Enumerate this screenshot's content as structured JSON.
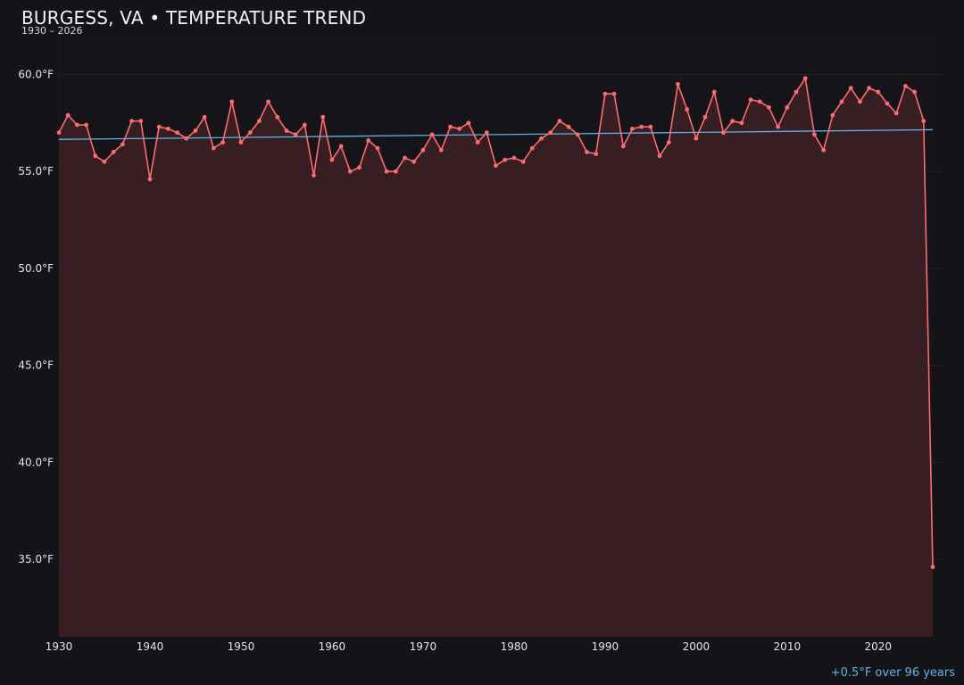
{
  "header": {
    "title": "BURGESS, VA • TEMPERATURE TREND",
    "subtitle": "1930 – 2026"
  },
  "footer": {
    "trend_note": "+0.5°F over 96 years"
  },
  "colors": {
    "background": "#131318",
    "plot_background": "#151519",
    "line": "#ff6b6b",
    "area_fill": "#3a1f25",
    "trend": "#5db3e8",
    "grid": "#2a2026",
    "tick_text": "#e6e6ea"
  },
  "chart_data": {
    "type": "line",
    "title": "BURGESS, VA • TEMPERATURE TREND",
    "subtitle": "1930 – 2026",
    "xlabel": "",
    "ylabel": "",
    "xlim": [
      1930,
      2026
    ],
    "ylim": [
      31,
      62
    ],
    "x_ticks": [
      1930,
      1940,
      1950,
      1960,
      1970,
      1980,
      1990,
      2000,
      2010,
      2020
    ],
    "y_ticks": [
      35.0,
      40.0,
      45.0,
      50.0,
      55.0,
      60.0
    ],
    "y_tick_labels": [
      "35.0°F",
      "40.0°F",
      "45.0°F",
      "50.0°F",
      "55.0°F",
      "60.0°F"
    ],
    "grid": true,
    "area_fill": true,
    "series": [
      {
        "x": [
          1930,
          1931,
          1932,
          1933,
          1934,
          1935,
          1936,
          1937,
          1938,
          1939,
          1940,
          1941,
          1942,
          1943,
          1944,
          1945,
          1946,
          1947,
          1948,
          1949,
          1950,
          1951,
          1952,
          1953,
          1954,
          1955,
          1956,
          1957,
          1958,
          1959,
          1960,
          1961,
          1962,
          1963,
          1964,
          1965,
          1966,
          1967,
          1968,
          1969,
          1970,
          1971,
          1972,
          1973,
          1974,
          1975,
          1976,
          1977,
          1978,
          1979,
          1980,
          1981,
          1982,
          1983,
          1984,
          1985,
          1986,
          1987,
          1988,
          1989,
          1990,
          1991,
          1992,
          1993,
          1994,
          1995,
          1996,
          1997,
          1998,
          1999,
          2000,
          2001,
          2002,
          2003,
          2004,
          2005,
          2006,
          2007,
          2008,
          2009,
          2010,
          2011,
          2012,
          2013,
          2014,
          2015,
          2016,
          2017,
          2018,
          2019,
          2020,
          2021,
          2022,
          2023,
          2024,
          2025,
          2026
        ],
        "values": [
          57.0,
          57.9,
          57.4,
          57.4,
          55.8,
          55.5,
          56.0,
          56.4,
          57.6,
          57.6,
          54.6,
          57.3,
          57.2,
          57.0,
          56.7,
          57.1,
          57.8,
          56.2,
          56.5,
          58.6,
          56.5,
          57.0,
          57.6,
          58.6,
          57.8,
          57.1,
          56.9,
          57.4,
          54.8,
          57.8,
          55.6,
          56.3,
          55.0,
          55.2,
          56.6,
          56.2,
          55.0,
          55.0,
          55.7,
          55.5,
          56.1,
          56.9,
          56.1,
          57.3,
          57.2,
          57.5,
          56.5,
          57.0,
          55.3,
          55.6,
          55.7,
          55.5,
          56.2,
          56.7,
          57.0,
          57.6,
          57.3,
          56.9,
          56.0,
          55.9,
          59.0,
          59.0,
          56.3,
          57.2,
          57.3,
          57.3,
          55.8,
          56.5,
          59.5,
          58.2,
          56.7,
          57.8,
          59.1,
          57.0,
          57.6,
          57.5,
          58.7,
          58.6,
          58.3,
          57.3,
          58.3,
          59.1,
          59.8,
          56.9,
          56.1,
          57.9,
          58.6,
          59.3,
          58.6,
          59.3,
          59.1,
          58.5,
          58.0,
          59.4,
          59.1,
          57.6,
          34.6
        ]
      },
      {
        "name": "trend",
        "x": [
          1930,
          2026
        ],
        "values": [
          56.65,
          57.15
        ]
      }
    ]
  }
}
